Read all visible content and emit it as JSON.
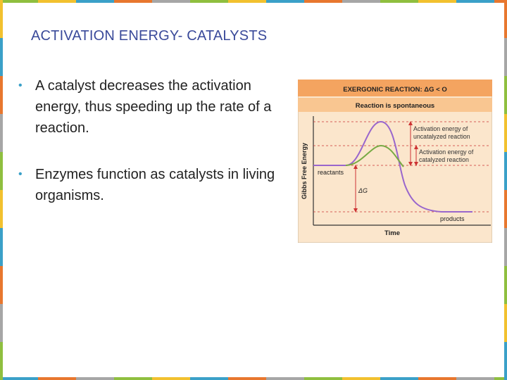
{
  "slide": {
    "title": "ACTIVATION ENERGY- CATALYSTS",
    "bullets": [
      "A catalyst decreases the activation energy, thus speeding up the rate of a reaction.",
      "Enzymes function as catalysts in living organisms."
    ]
  },
  "colors": {
    "title": "#3a4a9a",
    "bullet_marker": "#3aa0c8",
    "header_bar": "#f4a460",
    "sub_header_bar": "#f9c691",
    "figure_bg": "#fbe6cc",
    "uncatalyzed_curve": "#9966cc",
    "catalyzed_curve": "#77aa44",
    "arrows": "#cc3333",
    "frame_stripes": [
      "#8fbf3f",
      "#f2c12e",
      "#3aa0c8",
      "#e8772e",
      "#a6a6a6"
    ]
  },
  "figure": {
    "header": "EXERGONIC REACTION: ΔG < O",
    "subheader": "Reaction is spontaneous",
    "y_axis_label": "Gibbs Free Energy",
    "x_axis_label": "Time",
    "label_reactants": "reactants",
    "label_products": "products",
    "label_delta_g": "ΔG",
    "label_uncatalyzed": [
      "Activation energy of",
      "uncatalyzed reaction"
    ],
    "label_catalyzed": [
      "Activation energy of",
      "catalyzed reaction"
    ]
  }
}
